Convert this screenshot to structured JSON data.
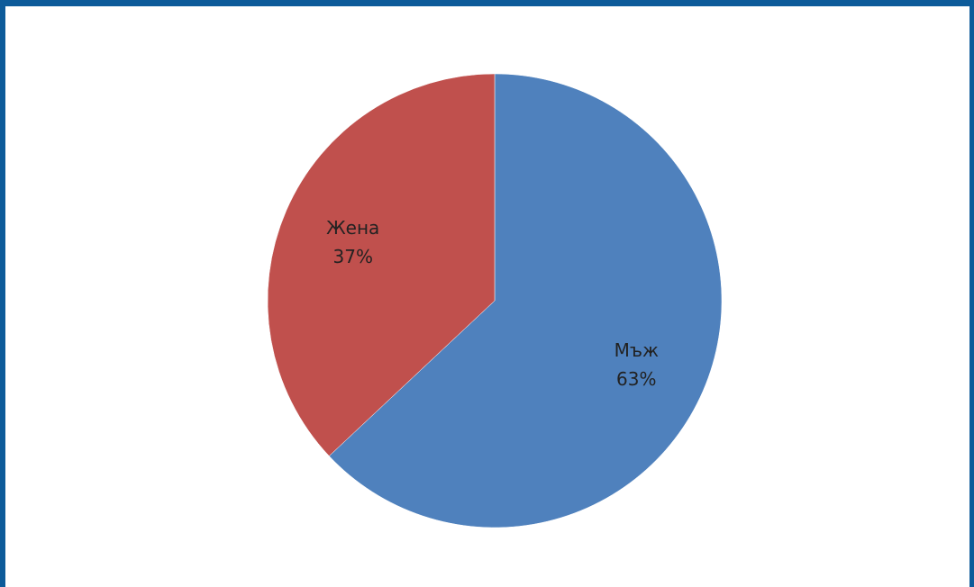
{
  "chart_data": {
    "type": "pie",
    "title": "",
    "slices": [
      {
        "label": "Мъж",
        "value": 63,
        "value_label": "63%",
        "color": "#4f81bd"
      },
      {
        "label": "Жена",
        "value": 37,
        "value_label": "37%",
        "color": "#c0504d"
      }
    ],
    "start_angle": "12 o'clock",
    "direction": "clockwise",
    "legend": "none",
    "data_labels": "inside slices (name and percent)"
  },
  "frame": {
    "border_color": "#0d5b9a"
  }
}
